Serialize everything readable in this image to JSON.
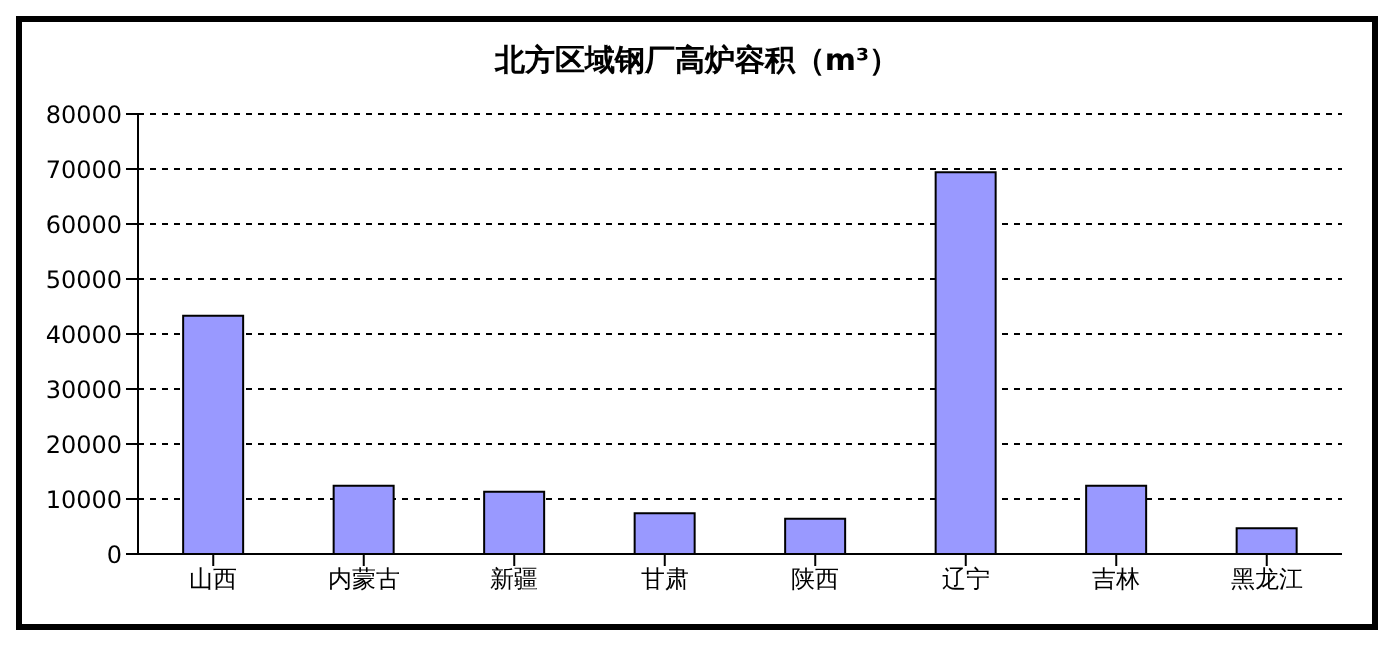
{
  "chart_data": {
    "type": "bar",
    "title": "北方区域钢厂高炉容积（m³）",
    "categories": [
      "山西",
      "内蒙古",
      "新疆",
      "甘肃",
      "陕西",
      "辽宁",
      "吉林",
      "黑龙江"
    ],
    "values": [
      43300,
      12400,
      11300,
      7400,
      6400,
      69400,
      12400,
      4700
    ],
    "color": "#9999ff",
    "ylim": [
      0,
      80000
    ],
    "yticks": [
      0,
      10000,
      20000,
      30000,
      40000,
      50000,
      60000,
      70000,
      80000
    ],
    "grid": "y",
    "legend": false
  }
}
